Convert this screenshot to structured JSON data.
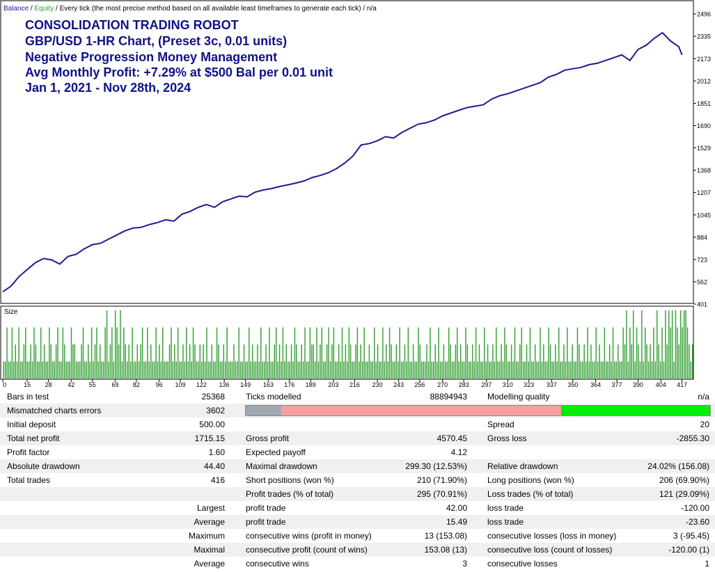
{
  "colors": {
    "balance": "#1b1b8f",
    "equity": "#2a9a2a",
    "size_bars": "#35a035",
    "title_text": "#10108a",
    "quality_gray": "#a0a8b0",
    "quality_red": "#f4a0a0",
    "quality_green": "#00ee00"
  },
  "legend": {
    "balance": "Balance",
    "sep1": " / ",
    "equity": "Equity",
    "rest": " / Every tick (the most precise method based on all available least timeframes to generate each tick) / n/a"
  },
  "annotation": [
    "CONSOLIDATION TRADING ROBOT",
    "GBP/USD 1-HR Chart, (Preset 3c, 0.01 units)",
    "Negative Progression Money Management",
    "Avg Monthly Profit: +7.29% at $500 Bal per 0.01 unit",
    "Jan 1, 2021 - Nov 28th, 2024"
  ],
  "size_label": "Size",
  "chart_data": [
    {
      "type": "line",
      "series": [
        {
          "name": "Balance",
          "x": [
            0,
            5,
            10,
            15,
            20,
            25,
            30,
            35,
            40,
            45,
            50,
            55,
            60,
            65,
            70,
            75,
            80,
            85,
            90,
            95,
            100,
            105,
            110,
            115,
            120,
            125,
            130,
            135,
            140,
            145,
            150,
            155,
            160,
            165,
            170,
            175,
            180,
            185,
            190,
            195,
            200,
            205,
            210,
            215,
            220,
            225,
            230,
            235,
            240,
            245,
            250,
            255,
            260,
            265,
            270,
            275,
            280,
            285,
            290,
            295,
            300,
            305,
            310,
            315,
            320,
            325,
            330,
            335,
            340,
            345,
            350,
            355,
            360,
            365,
            370,
            375,
            380,
            385,
            390,
            395,
            400,
            405,
            410,
            415,
            417
          ],
          "values": [
            490,
            530,
            600,
            650,
            700,
            730,
            720,
            690,
            745,
            760,
            800,
            830,
            840,
            870,
            900,
            930,
            950,
            955,
            975,
            990,
            1010,
            1000,
            1050,
            1070,
            1100,
            1120,
            1100,
            1140,
            1160,
            1180,
            1175,
            1210,
            1225,
            1235,
            1250,
            1262,
            1275,
            1290,
            1315,
            1330,
            1350,
            1380,
            1420,
            1470,
            1550,
            1560,
            1580,
            1610,
            1600,
            1640,
            1670,
            1700,
            1710,
            1730,
            1760,
            1780,
            1800,
            1820,
            1830,
            1840,
            1880,
            1905,
            1920,
            1940,
            1960,
            1980,
            2000,
            2040,
            2060,
            2090,
            2100,
            2110,
            2130,
            2140,
            2160,
            2180,
            2200,
            2160,
            2240,
            2270,
            2320,
            2360,
            2300,
            2260,
            2200
          ]
        }
      ],
      "x_ticks": [
        "0",
        "15",
        "28",
        "42",
        "55",
        "69",
        "82",
        "96",
        "109",
        "122",
        "136",
        "149",
        "163",
        "176",
        "189",
        "203",
        "216",
        "230",
        "243",
        "256",
        "270",
        "283",
        "297",
        "310",
        "323",
        "337",
        "350",
        "364",
        "377",
        "390",
        "404",
        "417"
      ],
      "y_ticks": [
        "2496",
        "2335",
        "2173",
        "2012",
        "1851",
        "1690",
        "1529",
        "1368",
        "1207",
        "1045",
        "884",
        "723",
        "562",
        "401"
      ],
      "ylim": [
        401,
        2496
      ],
      "xlim": [
        0,
        424
      ],
      "grid": false,
      "legend": "top-left"
    },
    {
      "type": "bar",
      "title": "Size",
      "series": [
        {
          "name": "",
          "values": [
            1,
            1,
            3,
            1,
            1,
            3,
            1,
            2,
            1,
            3,
            1,
            1,
            2,
            3,
            1,
            1,
            2,
            1,
            3,
            2,
            1,
            1,
            3,
            1,
            2,
            1,
            1,
            3,
            2,
            1,
            1,
            2,
            3,
            1,
            1,
            3,
            2,
            1,
            1,
            1,
            3,
            2,
            2,
            1,
            1,
            1,
            2,
            3,
            1,
            1,
            2,
            1,
            3,
            1,
            2,
            3,
            1,
            2,
            1,
            1,
            3,
            4,
            1,
            2,
            3,
            1,
            4,
            3,
            2,
            4,
            1,
            3,
            2,
            1,
            2,
            1,
            3,
            1,
            1,
            2,
            1,
            2,
            3,
            1,
            1,
            3,
            1,
            2,
            1,
            1,
            3,
            1,
            2,
            1,
            3,
            1,
            1,
            1,
            2,
            3,
            1,
            2,
            1,
            3,
            1,
            1,
            2,
            1,
            3,
            1,
            2,
            1,
            3,
            2,
            1,
            1,
            2,
            1,
            2,
            1,
            3,
            1,
            1,
            2,
            1,
            1,
            3,
            2,
            1,
            1,
            2,
            1,
            3,
            1,
            1,
            1,
            2,
            1,
            1,
            3,
            1,
            1,
            2,
            1,
            1,
            3,
            1,
            2,
            1,
            1,
            2,
            1,
            3,
            1,
            1,
            2,
            1,
            3,
            1,
            1,
            2,
            3,
            1,
            2,
            1,
            3,
            1,
            2,
            1,
            1,
            2,
            1,
            3,
            2,
            1,
            1,
            2,
            1,
            3,
            1,
            1,
            3,
            2,
            2,
            1,
            3,
            1,
            2,
            3,
            1,
            1,
            2,
            3,
            1,
            2,
            3,
            1,
            1,
            2,
            1,
            3,
            1,
            2,
            1,
            3,
            2,
            1,
            1,
            2,
            3,
            1,
            2,
            1,
            3,
            1,
            1,
            2,
            1,
            1,
            3,
            1,
            2,
            1,
            1,
            3,
            1,
            2,
            1,
            3,
            2,
            1,
            1,
            2,
            1,
            3,
            1,
            1,
            2,
            1,
            3,
            1,
            1,
            2,
            1,
            1,
            3,
            2,
            1,
            1,
            1,
            2,
            1,
            3,
            1,
            1,
            2,
            1,
            3,
            1,
            1,
            2,
            1,
            1,
            3,
            2,
            1,
            1,
            2,
            3,
            1,
            2,
            1,
            1,
            3,
            2,
            1,
            1,
            2,
            1,
            3,
            1,
            2,
            1,
            1,
            3,
            1,
            2,
            1,
            1,
            2,
            1,
            3,
            1,
            1,
            2,
            1,
            3,
            2,
            1,
            1,
            2,
            1,
            3,
            1,
            1,
            2,
            3,
            1,
            1,
            2,
            1,
            3,
            1,
            1,
            2,
            1,
            1,
            3,
            1,
            2,
            1,
            1,
            3,
            2,
            1,
            1,
            2,
            1,
            3,
            1,
            1,
            2,
            1,
            3,
            1,
            1,
            2,
            1,
            1,
            3,
            2,
            1,
            1,
            2,
            1,
            3,
            1,
            2,
            1,
            1,
            3,
            1,
            2,
            1,
            1,
            3,
            1,
            1,
            2,
            1,
            3,
            1,
            1,
            2,
            1,
            1,
            3,
            2,
            4,
            1,
            3,
            2,
            4,
            1,
            3,
            2,
            1,
            4,
            1,
            3,
            2,
            1,
            2,
            1,
            3,
            1,
            4,
            2,
            1,
            3,
            1,
            4,
            2,
            4,
            3,
            4,
            1,
            4,
            3,
            2,
            4,
            3,
            4,
            4,
            3,
            2,
            1,
            2
          ]
        }
      ],
      "ylim": [
        0,
        4
      ]
    }
  ],
  "report": {
    "rows": [
      {
        "c1l": "Bars in test",
        "c1v": "25368",
        "c2l": "Ticks modelled",
        "c2v": "88894943",
        "c3l": "Modelling quality",
        "c3v": "n/a"
      },
      {
        "c1l": "Mismatched charts errors",
        "c1v": "3602",
        "c2l": "",
        "c2v": "",
        "c3l": "",
        "c3v": ""
      },
      {
        "c1l": "Initial deposit",
        "c1v": "500.00",
        "c2l": "",
        "c2v": "",
        "c3l": "Spread",
        "c3v": "20"
      },
      {
        "c1l": "Total net profit",
        "c1v": "1715.15",
        "c2l": "Gross profit",
        "c2v": "4570.45",
        "c3l": "Gross loss",
        "c3v": "-2855.30"
      },
      {
        "c1l": "Profit factor",
        "c1v": "1.60",
        "c2l": "Expected payoff",
        "c2v": "4.12",
        "c3l": "",
        "c3v": ""
      },
      {
        "c1l": "Absolute drawdown",
        "c1v": "44.40",
        "c2l": "Maximal drawdown",
        "c2v": "299.30 (12.53%)",
        "c3l": "Relative drawdown",
        "c3v": "24.02% (156.08)"
      },
      {
        "c1l": "Total trades",
        "c1v": "416",
        "c2l": "Short positions (won %)",
        "c2v": "210 (71.90%)",
        "c3l": "Long positions (won %)",
        "c3v": "206 (69.90%)"
      },
      {
        "c1l": "",
        "c1v": "",
        "c2l": "Profit trades (% of total)",
        "c2v": "295 (70.91%)",
        "c3l": "Loss trades (% of total)",
        "c3v": "121 (29.09%)"
      },
      {
        "c1l": "",
        "c1v": "Largest",
        "c2l": "profit trade",
        "c2v": "42.00",
        "c3l": "loss trade",
        "c3v": "-120.00"
      },
      {
        "c1l": "",
        "c1v": "Average",
        "c2l": "profit trade",
        "c2v": "15.49",
        "c3l": "loss trade",
        "c3v": "-23.60"
      },
      {
        "c1l": "",
        "c1v": "Maximum",
        "c2l": "consecutive wins (profit in money)",
        "c2v": "13 (153.08)",
        "c3l": "consecutive losses (loss in money)",
        "c3v": "3 (-95.45)"
      },
      {
        "c1l": "",
        "c1v": "Maximal",
        "c2l": "consecutive profit (count of wins)",
        "c2v": "153.08 (13)",
        "c3l": "consecutive loss (count of losses)",
        "c3v": "-120.00 (1)"
      },
      {
        "c1l": "",
        "c1v": "Average",
        "c2l": "consecutive wins",
        "c2v": "3",
        "c3l": "consecutive losses",
        "c3v": "1"
      }
    ],
    "quality_segments": [
      0.077,
      0.602,
      0.321
    ]
  }
}
